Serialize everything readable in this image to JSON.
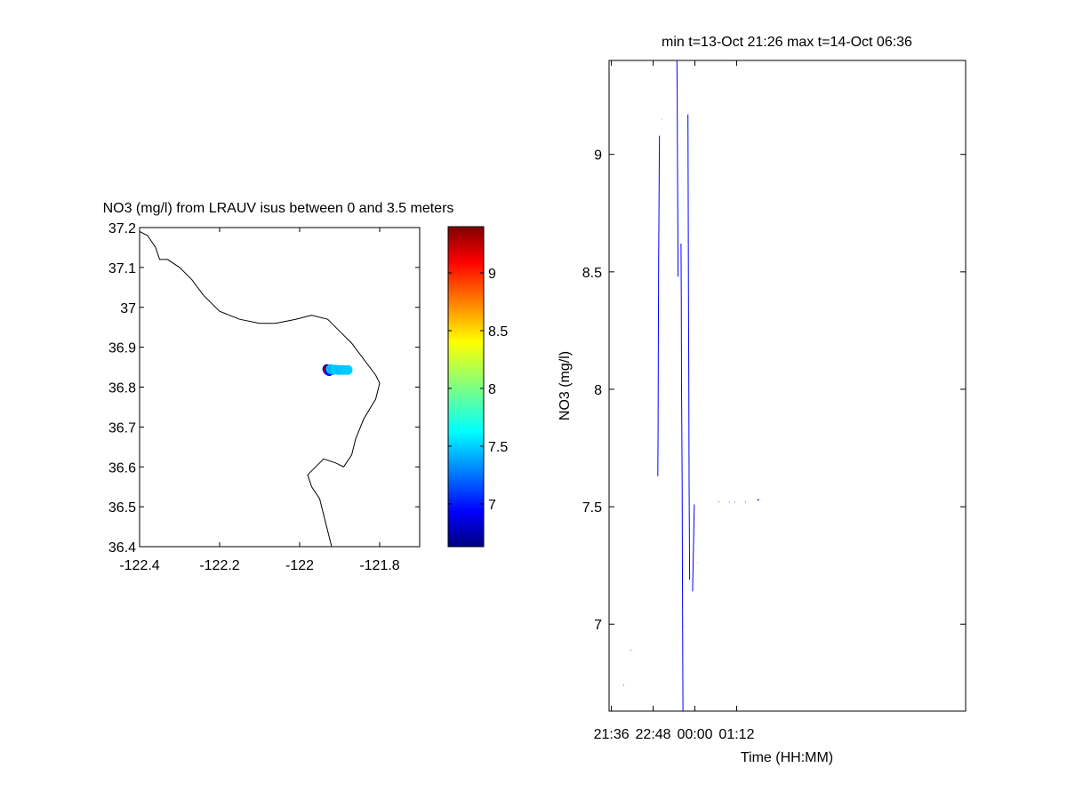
{
  "chart_data": [
    {
      "type": "map-scatter",
      "title": "NO3 (mg/l) from LRAUV isus between 0 and 3.5 meters",
      "xlim": [
        -122.4,
        -121.7
      ],
      "ylim": [
        36.4,
        37.2
      ],
      "xticks": [
        -122.4,
        -122.2,
        -122,
        -121.8
      ],
      "xtick_labels": [
        "-122.4",
        "-122.2",
        "-122",
        "-121.8"
      ],
      "yticks": [
        36.4,
        36.5,
        36.6,
        36.7,
        36.8,
        36.9,
        37,
        37.1,
        37.2
      ],
      "ytick_labels": [
        "36.4",
        "36.5",
        "36.6",
        "36.7",
        "36.8",
        "36.9",
        "37",
        "37.1",
        "37.2"
      ],
      "grid": false,
      "coastline": [
        [
          -122.4,
          37.19
        ],
        [
          -122.38,
          37.18
        ],
        [
          -122.36,
          37.15
        ],
        [
          -122.35,
          37.12
        ],
        [
          -122.33,
          37.12
        ],
        [
          -122.3,
          37.1
        ],
        [
          -122.27,
          37.07
        ],
        [
          -122.24,
          37.03
        ],
        [
          -122.2,
          36.99
        ],
        [
          -122.15,
          36.97
        ],
        [
          -122.1,
          36.96
        ],
        [
          -122.06,
          36.96
        ],
        [
          -122.01,
          36.97
        ],
        [
          -121.97,
          36.98
        ],
        [
          -121.93,
          36.97
        ],
        [
          -121.9,
          36.94
        ],
        [
          -121.87,
          36.91
        ],
        [
          -121.84,
          36.87
        ],
        [
          -121.81,
          36.83
        ],
        [
          -121.8,
          36.81
        ],
        [
          -121.81,
          36.77
        ],
        [
          -121.84,
          36.72
        ],
        [
          -121.86,
          36.67
        ],
        [
          -121.87,
          36.63
        ],
        [
          -121.89,
          36.6
        ],
        [
          -121.91,
          36.61
        ],
        [
          -121.94,
          36.62
        ],
        [
          -121.96,
          36.6
        ],
        [
          -121.98,
          36.58
        ],
        [
          -121.97,
          36.55
        ],
        [
          -121.95,
          36.52
        ],
        [
          -121.94,
          36.48
        ],
        [
          -121.93,
          36.44
        ],
        [
          -121.92,
          36.4
        ]
      ],
      "points": [
        {
          "x": -121.931,
          "y": 36.845,
          "value": 6.75
        },
        {
          "x": -121.929,
          "y": 36.842,
          "value": 9.3
        },
        {
          "x": -121.926,
          "y": 36.84,
          "value": 7.0
        },
        {
          "x": -121.922,
          "y": 36.845,
          "value": 7.52
        },
        {
          "x": -121.917,
          "y": 36.843,
          "value": 7.45
        },
        {
          "x": -121.911,
          "y": 36.844,
          "value": 7.52
        },
        {
          "x": -121.903,
          "y": 36.843,
          "value": 7.52
        },
        {
          "x": -121.897,
          "y": 36.843,
          "value": 7.5
        },
        {
          "x": -121.89,
          "y": 36.843,
          "value": 7.52
        },
        {
          "x": -121.88,
          "y": 36.843,
          "value": 7.53
        }
      ],
      "colorbar": {
        "colormap": "jet",
        "range": [
          6.63,
          9.4
        ],
        "ticks": [
          7,
          7.5,
          8,
          8.5,
          9
        ],
        "tick_labels": [
          "7",
          "7.5",
          "8",
          "8.5",
          "9"
        ]
      }
    },
    {
      "type": "line",
      "title": "min t=13-Oct 21:26 max t=14-Oct 06:36",
      "xlabel": "Time (HH:MM)",
      "ylabel": "NO3 (mg/l)",
      "xlim_minutes": [
        1292,
        1907
      ],
      "xticks_minutes": [
        1296,
        1368,
        1440,
        1512
      ],
      "xtick_labels": [
        "21:36",
        "22:48",
        "00:00",
        "01:12"
      ],
      "ylim": [
        6.63,
        9.4
      ],
      "yticks": [
        7,
        7.5,
        8,
        8.5,
        9
      ],
      "ytick_labels": [
        "7",
        "7.5",
        "8",
        "8.5",
        "9"
      ],
      "grid": false,
      "line_color": "#0000ff",
      "series": [
        {
          "points": [
            [
              1317,
              6.74
            ],
            [
              1318,
              6.74
            ]
          ]
        },
        {
          "points": [
            [
              1329,
              6.89
            ],
            [
              1330,
              6.89
            ]
          ]
        },
        {
          "points": [
            [
              1376.0,
              7.63
            ],
            [
              1376.5,
              7.82
            ],
            [
              1377.0,
              8.2
            ],
            [
              1377.5,
              8.55
            ],
            [
              1378.0,
              8.75
            ],
            [
              1378.5,
              8.95
            ],
            [
              1379.0,
              9.08
            ]
          ]
        },
        {
          "points": [
            [
              1383,
              9.15
            ],
            [
              1383.5,
              9.15
            ]
          ]
        },
        {
          "points": [
            [
              1409.0,
              9.4
            ],
            [
              1409.5,
              9.28
            ],
            [
              1410.0,
              9.0
            ],
            [
              1410.5,
              8.72
            ],
            [
              1411.0,
              8.48
            ]
          ]
        },
        {
          "points": [
            [
              1416.0,
              8.62
            ],
            [
              1416.5,
              8.4
            ],
            [
              1417.0,
              8.0
            ],
            [
              1418.0,
              7.6
            ],
            [
              1418.5,
              7.2
            ],
            [
              1419.0,
              6.9
            ],
            [
              1419.5,
              6.63
            ]
          ]
        },
        {
          "points": [
            [
              1422.5,
              6.99
            ],
            [
              1423,
              6.99
            ]
          ]
        },
        {
          "points": [
            [
              1428.0,
              9.17
            ],
            [
              1428.5,
              8.8
            ],
            [
              1429.0,
              8.4
            ],
            [
              1429.5,
              8.0
            ],
            [
              1430.0,
              7.6
            ],
            [
              1431.0,
              7.19
            ]
          ]
        },
        {
          "points": [
            [
              1436.0,
              7.14
            ],
            [
              1437.0,
              7.25
            ],
            [
              1438.0,
              7.38
            ],
            [
              1439.0,
              7.51
            ]
          ]
        },
        {
          "points": [
            [
              1444,
              7.26
            ],
            [
              1444.5,
              7.26
            ]
          ]
        },
        {
          "points": [
            [
              1481,
              7.52
            ],
            [
              1482,
              7.52
            ]
          ]
        },
        {
          "points": [
            [
              1499,
              7.52
            ],
            [
              1500,
              7.52
            ]
          ]
        },
        {
          "points": [
            [
              1508,
              7.52
            ],
            [
              1509,
              7.52
            ]
          ]
        },
        {
          "points": [
            [
              1527,
              7.52
            ],
            [
              1528,
              7.52
            ]
          ]
        },
        {
          "points": [
            [
              1547,
              7.53
            ],
            [
              1551,
              7.53
            ]
          ]
        }
      ]
    }
  ]
}
